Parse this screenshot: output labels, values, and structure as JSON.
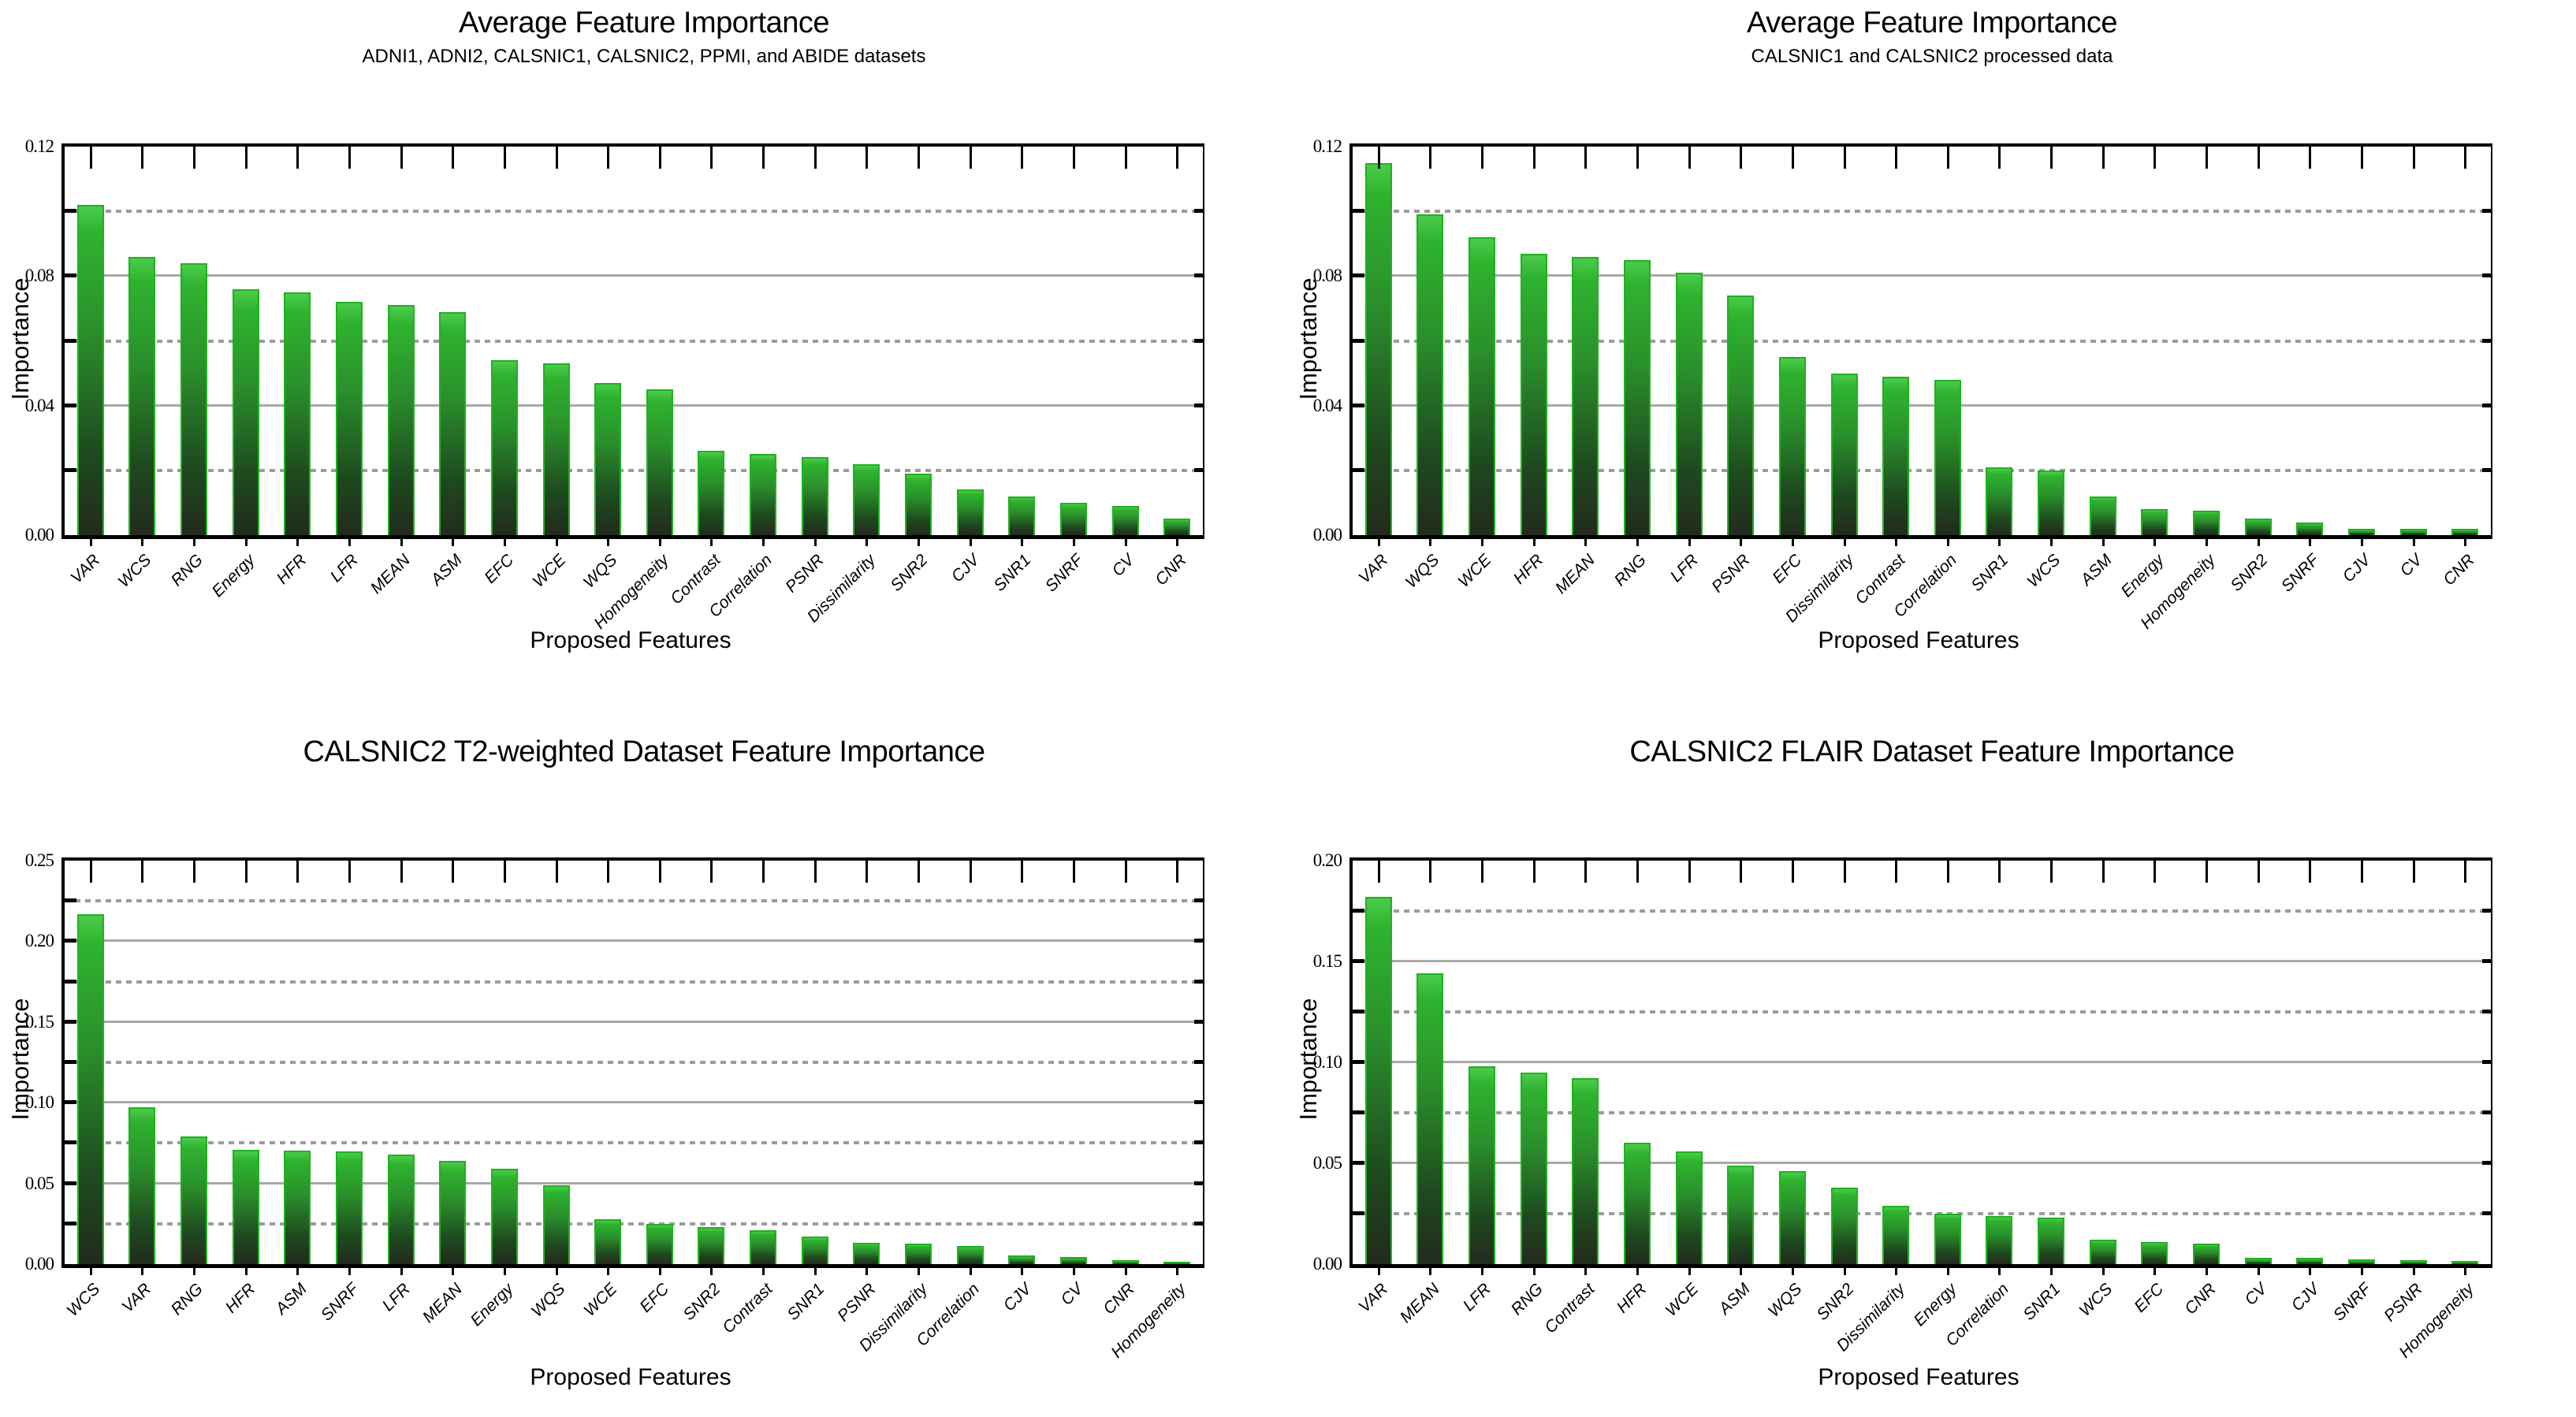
{
  "page": {
    "background": "#ffffff"
  },
  "colors": {
    "bar_border": "#1db31d",
    "bar_gradient_top": "#4ccb4c",
    "bar_gradient_upper": "#2fb32f",
    "bar_gradient_mid": "#2a8f2b",
    "bar_gradient_lower": "#1e4a1f",
    "bar_gradient_bottom": "#232a1e",
    "grid_solid": "#a8a8a8",
    "grid_dashed": "#9c9c9c",
    "axis": "#000000"
  },
  "chart_data": [
    {
      "type": "bar",
      "title": "Average Feature Importance",
      "subtitle": "ADNI1, ADNI2, CALSNIC1, CALSNIC2, PPMI, and ABIDE datasets",
      "xlabel": "Proposed Features",
      "ylabel": "Importance",
      "ylim": [
        0,
        0.12
      ],
      "yticks": [
        0,
        0.04,
        0.08,
        0.12
      ],
      "grid": {
        "solid": [
          0.04,
          0.08
        ],
        "dashed": [
          0.02,
          0.06,
          0.1
        ]
      },
      "legend": "none",
      "categories": [
        "VAR",
        "WCS",
        "RNG",
        "Energy",
        "HFR",
        "LFR",
        "MEAN",
        "ASM",
        "EFC",
        "WCE",
        "WQS",
        "Homogeneity",
        "Contrast",
        "Correlation",
        "PSNR",
        "Dissimilarity",
        "SNR2",
        "CJV",
        "SNR1",
        "SNRF",
        "CV",
        "CNR"
      ],
      "values": [
        0.102,
        0.086,
        0.084,
        0.076,
        0.075,
        0.072,
        0.071,
        0.069,
        0.054,
        0.053,
        0.047,
        0.045,
        0.026,
        0.025,
        0.024,
        0.022,
        0.019,
        0.014,
        0.012,
        0.01,
        0.009,
        0.005
      ]
    },
    {
      "type": "bar",
      "title": "Average Feature Importance",
      "subtitle": "CALSNIC1 and CALSNIC2 processed data",
      "xlabel": "Proposed Features",
      "ylabel": "Importance",
      "ylim": [
        0,
        0.12
      ],
      "yticks": [
        0,
        0.04,
        0.08,
        0.12
      ],
      "grid": {
        "solid": [
          0.04,
          0.08
        ],
        "dashed": [
          0.02,
          0.06,
          0.1
        ]
      },
      "legend": "none",
      "categories": [
        "VAR",
        "WQS",
        "WCE",
        "HFR",
        "MEAN",
        "RNG",
        "LFR",
        "PSNR",
        "EFC",
        "Dissimilarity",
        "Contrast",
        "Correlation",
        "SNR1",
        "WCS",
        "ASM",
        "Energy",
        "Homogeneity",
        "SNR2",
        "SNRF",
        "CJV",
        "CV",
        "CNR"
      ],
      "values": [
        0.115,
        0.099,
        0.092,
        0.087,
        0.086,
        0.085,
        0.081,
        0.074,
        0.055,
        0.05,
        0.049,
        0.048,
        0.021,
        0.02,
        0.012,
        0.008,
        0.0076,
        0.005,
        0.004,
        0.002,
        0.002,
        0.002
      ]
    },
    {
      "type": "bar",
      "title": "CALSNIC2 T2-weighted Dataset Feature Importance",
      "subtitle": "",
      "xlabel": "Proposed Features",
      "ylabel": "Importance",
      "ylim": [
        0,
        0.25
      ],
      "yticks": [
        0,
        0.05,
        0.1,
        0.15,
        0.2,
        0.25
      ],
      "grid": {
        "solid": [
          0.05,
          0.1,
          0.15,
          0.2
        ],
        "dashed": [
          0.025,
          0.075,
          0.125,
          0.175,
          0.225
        ]
      },
      "legend": "none",
      "categories": [
        "WCS",
        "VAR",
        "RNG",
        "HFR",
        "ASM",
        "SNRF",
        "LFR",
        "MEAN",
        "Energy",
        "WQS",
        "WCE",
        "EFC",
        "SNR2",
        "Contrast",
        "SNR1",
        "PSNR",
        "Dissimilarity",
        "Correlation",
        "CJV",
        "CV",
        "CNR",
        "Homogeneity"
      ],
      "values": [
        0.217,
        0.097,
        0.079,
        0.071,
        0.0705,
        0.07,
        0.068,
        0.064,
        0.059,
        0.049,
        0.028,
        0.025,
        0.023,
        0.021,
        0.017,
        0.013,
        0.0125,
        0.011,
        0.0055,
        0.0045,
        0.0023,
        0.0016
      ]
    },
    {
      "type": "bar",
      "title": "CALSNIC2 FLAIR Dataset Feature Importance",
      "subtitle": "",
      "xlabel": "Proposed Features",
      "ylabel": "Importance",
      "ylim": [
        0,
        0.2
      ],
      "yticks": [
        0,
        0.05,
        0.1,
        0.15,
        0.2
      ],
      "grid": {
        "solid": [
          0.05,
          0.1,
          0.15
        ],
        "dashed": [
          0.025,
          0.075,
          0.125,
          0.175
        ]
      },
      "legend": "none",
      "categories": [
        "VAR",
        "MEAN",
        "LFR",
        "RNG",
        "Contrast",
        "HFR",
        "WCE",
        "ASM",
        "WQS",
        "SNR2",
        "Dissimilarity",
        "Energy",
        "Correlation",
        "SNR1",
        "WCS",
        "EFC",
        "CNR",
        "CV",
        "CJV",
        "SNRF",
        "PSNR",
        "Homogeneity"
      ],
      "values": [
        0.182,
        0.144,
        0.098,
        0.095,
        0.092,
        0.06,
        0.056,
        0.049,
        0.046,
        0.038,
        0.029,
        0.025,
        0.024,
        0.023,
        0.012,
        0.011,
        0.01,
        0.0032,
        0.0032,
        0.0022,
        0.0018,
        0.0014
      ]
    }
  ]
}
